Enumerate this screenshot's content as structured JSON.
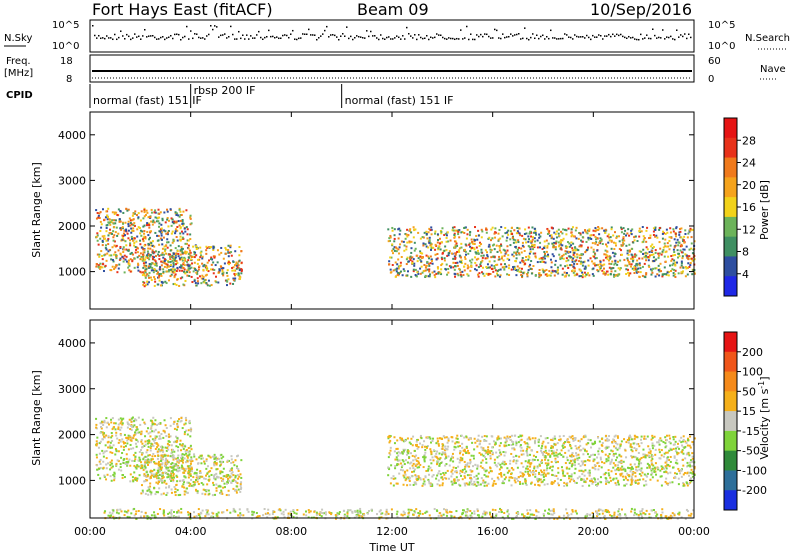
{
  "header": {
    "title": "Fort Hays East (fitACF)",
    "beam": "Beam 09",
    "date": "10/Sep/2016"
  },
  "strips": {
    "nsky_label": "N.Sky",
    "nsearch_label": "N.Search",
    "nsky_ticks": [
      "10^5",
      "10^0"
    ],
    "nsearch_ticks": [
      "10^5",
      "10^0"
    ],
    "freq_label": "Freq.",
    "freq_unit": "[MHz]",
    "freq_ticks": [
      "18",
      "8"
    ],
    "nave_label": "Nave",
    "nave_ticks": [
      "60",
      "0"
    ],
    "cpid_label": "CPID",
    "cpid_segments": [
      {
        "label": "normal (fast) 151 IF",
        "start_h": 0,
        "end_h": 4
      },
      {
        "label": "rbsp 200 IF",
        "start_h": 4,
        "end_h": 10
      },
      {
        "label": "normal (fast) 151 IF",
        "start_h": 10,
        "end_h": 24
      }
    ]
  },
  "colors": {
    "power_scale": [
      "#1f28e6",
      "#2e4ea0",
      "#3f8f62",
      "#6cb35a",
      "#f2d21a",
      "#f5a31c",
      "#f07a1c",
      "#e8321a",
      "#e61414"
    ],
    "velocity_scale": [
      "#1a2fe0",
      "#2e6f9a",
      "#2f8a3a",
      "#7fd33a",
      "#c8c8c0",
      "#f5b01a",
      "#f58a1a",
      "#f0561a",
      "#e61414"
    ]
  },
  "chart_data": [
    {
      "type": "heatmap",
      "name": "power",
      "ylabel": "Slant Range [km]",
      "ylim": [
        180,
        4500
      ],
      "xlim": [
        0,
        24
      ],
      "y_ticks": [
        1000,
        2000,
        3000,
        4000
      ],
      "colorbar": {
        "label": "Power [dB]",
        "range": [
          0,
          32
        ],
        "ticks": [
          "28",
          "24",
          "20",
          "16",
          "12",
          "8",
          "4"
        ]
      },
      "echo_regions": [
        {
          "from_h": 0.2,
          "to_h": 4.0,
          "range_km": [
            1000,
            2400
          ],
          "level": "8-24 dB"
        },
        {
          "from_h": 2.0,
          "to_h": 6.0,
          "range_km": [
            700,
            1600
          ],
          "level": "8-20 dB"
        },
        {
          "from_h": 11.8,
          "to_h": 24.0,
          "range_km": [
            900,
            2000
          ],
          "level": "8-24 dB"
        }
      ]
    },
    {
      "type": "heatmap",
      "name": "velocity",
      "ylabel": "Slant Range [km]",
      "ylim": [
        180,
        4500
      ],
      "xlim": [
        0,
        24
      ],
      "y_ticks": [
        1000,
        2000,
        3000,
        4000
      ],
      "x_ticks": [
        "00:00",
        "04:00",
        "08:00",
        "12:00",
        "16:00",
        "20:00",
        "00:00"
      ],
      "xlabel": "Time UT",
      "colorbar": {
        "label": "Velocity [m s^-1]",
        "range": [
          -250,
          250
        ],
        "ticks": [
          "200",
          "100",
          "50",
          "15",
          "-15",
          "-50",
          "-100",
          "-200"
        ]
      },
      "echo_regions": [
        {
          "from_h": 0.2,
          "to_h": 4.0,
          "range_km": [
            1000,
            2400
          ],
          "level": "-15 to 15 m/s"
        },
        {
          "from_h": 2.0,
          "to_h": 6.0,
          "range_km": [
            700,
            1600
          ],
          "level": "15 to 50 m/s"
        },
        {
          "from_h": 11.8,
          "to_h": 24.0,
          "range_km": [
            900,
            2000
          ],
          "level": "-15 to 15 m/s"
        },
        {
          "from_h": 0.5,
          "to_h": 24.0,
          "range_km": [
            180,
            400
          ],
          "level": "-50 to -15 m/s"
        }
      ]
    }
  ]
}
